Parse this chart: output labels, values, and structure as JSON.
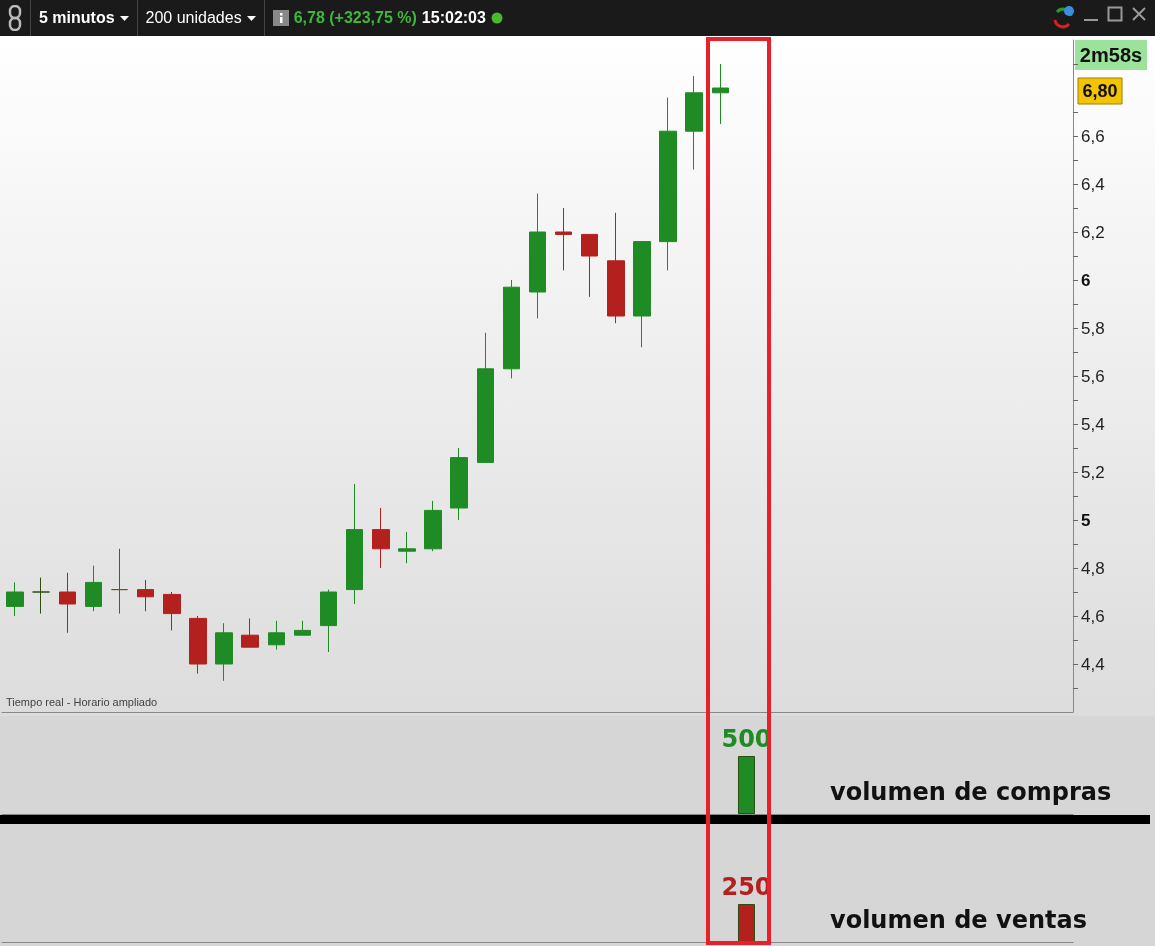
{
  "chart_data": [
    {
      "type": "candlestick",
      "subtitle": "Tiempo real - Horario ampliado",
      "annotations": [
        "5 minutos",
        "200 unidades",
        "6,78 (+323,75 %)",
        "15:02:03",
        "2m58s",
        "6,80"
      ],
      "categories": [
        null,
        null,
        null,
        null,
        null,
        null,
        null,
        null,
        null,
        null,
        null,
        null,
        null,
        null,
        null,
        null,
        null,
        null,
        null,
        null,
        null,
        null,
        null,
        null,
        null,
        null,
        null,
        null,
        null,
        null,
        null,
        null,
        null,
        null,
        null,
        null,
        null,
        null,
        null,
        null,
        null
      ],
      "ohlc": [
        [
          4.64,
          4.74,
          4.6,
          4.7
        ],
        [
          4.7,
          4.76,
          4.61,
          4.7
        ],
        [
          4.7,
          4.78,
          4.53,
          4.65
        ],
        [
          4.64,
          4.81,
          4.62,
          4.74
        ],
        [
          4.71,
          4.88,
          4.61,
          4.71
        ],
        [
          4.71,
          4.75,
          4.62,
          4.68
        ],
        [
          4.69,
          4.7,
          4.54,
          4.61
        ],
        [
          4.59,
          4.6,
          4.36,
          4.4
        ],
        [
          4.4,
          4.57,
          4.33,
          4.53
        ],
        [
          4.52,
          4.59,
          4.47,
          4.47
        ],
        [
          4.48,
          4.58,
          4.46,
          4.53
        ],
        [
          4.52,
          4.58,
          4.52,
          4.54
        ],
        [
          4.56,
          4.71,
          4.45,
          4.7
        ],
        [
          4.71,
          5.15,
          4.65,
          4.96
        ],
        [
          4.96,
          5.05,
          4.8,
          4.88
        ],
        [
          4.87,
          4.95,
          4.82,
          4.88
        ],
        [
          4.88,
          5.08,
          4.87,
          5.04
        ],
        [
          5.05,
          5.3,
          5.0,
          5.26
        ],
        [
          5.24,
          5.78,
          5.24,
          5.63
        ],
        [
          5.63,
          6.0,
          5.59,
          5.97
        ],
        [
          5.95,
          6.36,
          5.84,
          6.2
        ],
        [
          6.2,
          6.3,
          6.04,
          6.19
        ],
        [
          6.19,
          6.19,
          5.93,
          6.1
        ],
        [
          6.08,
          6.28,
          5.82,
          5.85
        ],
        [
          5.85,
          6.16,
          5.72,
          6.16
        ],
        [
          6.16,
          6.76,
          6.04,
          6.62
        ],
        [
          6.62,
          6.85,
          6.46,
          6.78
        ],
        [
          6.78,
          6.9,
          6.65,
          6.8
        ],
        null,
        null,
        null,
        null,
        null,
        null,
        null,
        null,
        null,
        null,
        null,
        null,
        null
      ],
      "colors": [
        "#1e8b24",
        "#2d4d12",
        "#b3201e",
        "#1e8b24",
        "#6b4f1a",
        "#b3201e",
        "#b3201e",
        "#b3201e",
        "#1e8b24",
        "#b3201e",
        "#1e8b24",
        "#1e8b24",
        "#1e8b24",
        "#1e8b24",
        "#b3201e",
        "#1e8b24",
        "#1e8b24",
        "#1e8b24",
        "#1e8b24",
        "#1e8b24",
        "#1e8b24",
        "#b3201e",
        "#b3201e",
        "#b3201e",
        "#1e8b24",
        "#1e8b24",
        "#1e8b24",
        "#1e8b24",
        null,
        null,
        null,
        null,
        null,
        null,
        null,
        null,
        null,
        null,
        null,
        null,
        null
      ],
      "ylim": [
        4.2,
        7.0
      ],
      "yticks": [
        {
          "value": 4.3,
          "label": null
        },
        {
          "value": 4.4,
          "label": "4,4"
        },
        {
          "value": 4.5,
          "label": null
        },
        {
          "value": 4.6,
          "label": "4,6"
        },
        {
          "value": 4.7,
          "label": null
        },
        {
          "value": 4.8,
          "label": "4,8"
        },
        {
          "value": 4.9,
          "label": null
        },
        5,
        {
          "value": 5.1,
          "label": null
        },
        {
          "value": 5.2,
          "label": "5,2"
        },
        {
          "value": 5.3,
          "label": null
        },
        {
          "value": 5.4,
          "label": "5,4"
        },
        {
          "value": 5.5,
          "label": null
        },
        {
          "value": 5.6,
          "label": "5,6"
        },
        {
          "value": 5.7,
          "label": null
        },
        {
          "value": 5.8,
          "label": "5,8"
        },
        {
          "value": 5.9,
          "label": null
        },
        6,
        {
          "value": 6.1,
          "label": null
        },
        {
          "value": 6.2,
          "label": "6,2"
        },
        {
          "value": 6.3,
          "label": null
        },
        {
          "value": 6.4,
          "label": "6,4"
        },
        {
          "value": 6.5,
          "label": null
        },
        {
          "value": 6.6,
          "label": "6,6"
        },
        {
          "value": 6.7,
          "label": null
        },
        {
          "value": 6.9,
          "label": null
        }
      ],
      "tick_labels": "y"
    },
    {
      "type": "bar",
      "annotations": [
        "volumen de compras"
      ],
      "categories": [
        null,
        null,
        null,
        null,
        null,
        null,
        null,
        null,
        null,
        null,
        null,
        null,
        null,
        null,
        null,
        null,
        null,
        null,
        null,
        null,
        null,
        null,
        null,
        null,
        null,
        null,
        null,
        null,
        null,
        null,
        null,
        null,
        null,
        null,
        null,
        null,
        null,
        null,
        null,
        null,
        null
      ],
      "values": [
        null,
        null,
        null,
        null,
        null,
        null,
        null,
        null,
        null,
        null,
        null,
        null,
        null,
        null,
        null,
        null,
        null,
        null,
        null,
        null,
        null,
        null,
        null,
        null,
        null,
        null,
        null,
        null,
        500,
        null,
        null,
        null,
        null,
        null,
        null,
        null,
        null,
        null,
        null,
        null,
        null
      ],
      "color": "#1e8b24",
      "data_labels": true,
      "tick_labels": false
    },
    {
      "type": "bar",
      "annotations": [
        "volumen de ventas"
      ],
      "categories": [
        null,
        null,
        null,
        null,
        null,
        null,
        null,
        null,
        null,
        null,
        null,
        null,
        null,
        null,
        null,
        null,
        null,
        null,
        null,
        null,
        null,
        null,
        null,
        null,
        null,
        null,
        null,
        null,
        null,
        null,
        null,
        null,
        null,
        null,
        null,
        null,
        null,
        null,
        null,
        null,
        null
      ],
      "values": [
        null,
        null,
        null,
        null,
        null,
        null,
        null,
        null,
        null,
        null,
        null,
        null,
        null,
        null,
        null,
        null,
        null,
        null,
        null,
        null,
        null,
        null,
        null,
        null,
        null,
        null,
        null,
        null,
        250,
        null,
        null,
        null,
        null,
        null,
        null,
        null,
        null,
        null,
        null,
        null,
        null
      ],
      "color": "#b3201e",
      "data_labels": true,
      "tick_labels": false
    }
  ]
}
